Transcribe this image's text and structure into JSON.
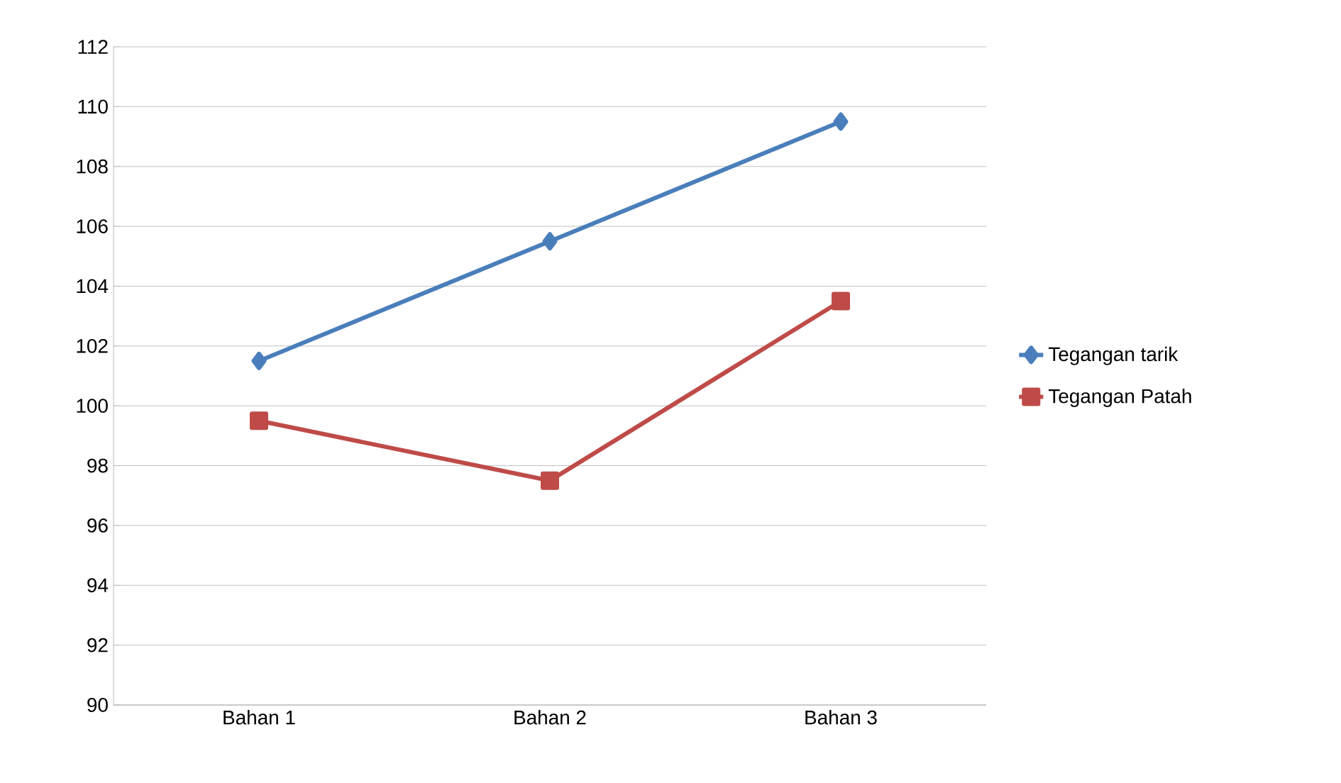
{
  "chart_data": {
    "type": "line",
    "categories": [
      "Bahan 1",
      "Bahan 2",
      "Bahan 3"
    ],
    "series": [
      {
        "name": "Tegangan tarik",
        "color": "#4a7ebb",
        "marker": "diamond",
        "values": [
          101.5,
          105.5,
          109.5
        ]
      },
      {
        "name": "Tegangan Patah",
        "color": "#be4b48",
        "marker": "square",
        "values": [
          99.5,
          97.5,
          103.5
        ]
      }
    ],
    "ylim": [
      90,
      112
    ],
    "yticks": [
      90,
      92,
      94,
      96,
      98,
      100,
      102,
      104,
      106,
      108,
      110,
      112
    ],
    "grid": "y",
    "legend": "right",
    "line_style": "solid"
  }
}
